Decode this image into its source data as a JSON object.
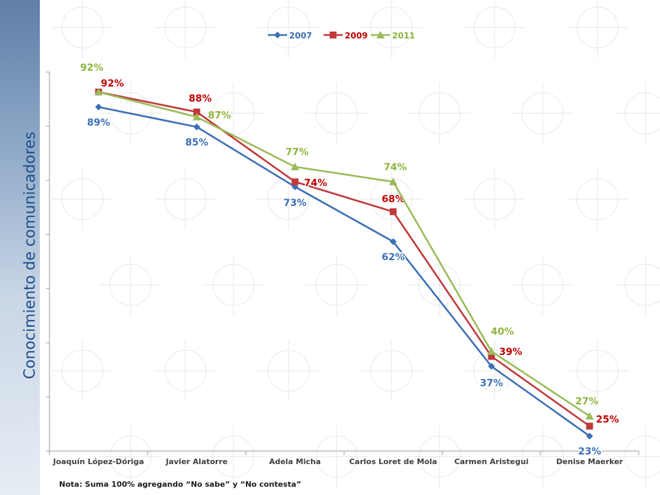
{
  "side_title": "Conocimiento de comunicadores",
  "note": "Nota: Suma 100% agregando “No sabe” y “No contesta”",
  "chart_data": {
    "type": "line",
    "title": "",
    "xlabel": "",
    "ylabel": "",
    "ylim": [
      20,
      96
    ],
    "grid": false,
    "legend_position": "top",
    "categories": [
      "Joaquín López-Dóriga",
      "Javier Alatorre",
      "Adela Micha",
      "Carlos Loret de Mola",
      "Carmen Aristegui",
      "Denise Maerker"
    ],
    "series": [
      {
        "name": "2007",
        "color": "#3d6fb6",
        "label_color": "#3d6fb6",
        "marker": "diamond",
        "values": [
          89,
          85,
          73,
          62,
          37,
          23
        ],
        "labels": [
          "89%",
          "85%",
          "73%",
          "62%",
          "37%",
          "23%"
        ]
      },
      {
        "name": "2009",
        "color": "#c0393b",
        "label_color": "#c00000",
        "marker": "square",
        "values": [
          92,
          88,
          74,
          68,
          39,
          25
        ],
        "labels": [
          "92%",
          "88%",
          "74%",
          "68%",
          "39%",
          "25%"
        ]
      },
      {
        "name": "2011",
        "color": "#9bbb59",
        "label_color": "#8db43c",
        "marker": "triangle",
        "values": [
          92,
          87,
          77,
          74,
          40,
          27
        ],
        "labels": [
          "92%",
          "87%",
          "77%",
          "74%",
          "40%",
          "27%"
        ]
      }
    ]
  }
}
